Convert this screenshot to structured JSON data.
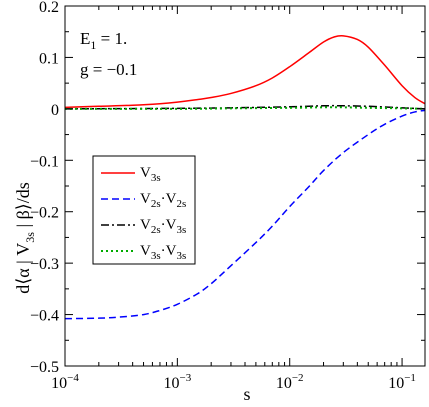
{
  "chart_data": {
    "type": "line",
    "xscale": "log",
    "xlim": [
      0.0001,
      0.16
    ],
    "ylim": [
      -0.5,
      0.2
    ],
    "xlabel": "s",
    "ylabel": "d⟨α|V3s|β⟩/ds",
    "ylabel_parts": {
      "pre": "d⟨α | V",
      "sub": "3s",
      "post": " | β⟩/ds"
    },
    "annotations": {
      "line1": "E1 = 1.",
      "line1_main": "E",
      "line1_sub": "1",
      "line1_rest": " = 1.",
      "line2": "g = −0.1"
    },
    "xticks": [
      {
        "value": 0.0001,
        "base": "10",
        "exp": "−4"
      },
      {
        "value": 0.001,
        "base": "10",
        "exp": "−3"
      },
      {
        "value": 0.01,
        "base": "10",
        "exp": "−2"
      },
      {
        "value": 0.1,
        "base": "10",
        "exp": "−1"
      }
    ],
    "yticks": [
      {
        "value": 0.2,
        "label": "0.2"
      },
      {
        "value": 0.1,
        "label": "0.1"
      },
      {
        "value": 0.0,
        "label": "0"
      },
      {
        "value": -0.1,
        "label": "−0.1"
      },
      {
        "value": -0.2,
        "label": "−0.2"
      },
      {
        "value": -0.3,
        "label": "−0.3"
      },
      {
        "value": -0.4,
        "label": "−0.4"
      },
      {
        "value": -0.5,
        "label": "−0.5"
      }
    ],
    "legend_position": "middle-left",
    "series": [
      {
        "name": "V3s",
        "legend_parts": [
          {
            "t": "V"
          },
          {
            "t": "3s",
            "sub": true
          }
        ],
        "color": "#ff0000",
        "dash": "solid",
        "x": [
          0.0001,
          0.0002,
          0.0004,
          0.0007,
          0.001,
          0.0015,
          0.002,
          0.003,
          0.005,
          0.007,
          0.01,
          0.015,
          0.02,
          0.025,
          0.03,
          0.04,
          0.05,
          0.07,
          0.1,
          0.13,
          0.16
        ],
        "y": [
          0.003,
          0.005,
          0.007,
          0.01,
          0.013,
          0.018,
          0.022,
          0.03,
          0.045,
          0.06,
          0.082,
          0.11,
          0.13,
          0.14,
          0.142,
          0.135,
          0.12,
          0.085,
          0.045,
          0.022,
          0.01
        ]
      },
      {
        "name": "V2s·V2s",
        "legend_parts": [
          {
            "t": "V"
          },
          {
            "t": "2s",
            "sub": true
          },
          {
            "t": "·V"
          },
          {
            "t": "2s",
            "sub": true
          }
        ],
        "color": "#0000ff",
        "dash": "dashed",
        "x": [
          0.0001,
          0.0002,
          0.0003,
          0.0005,
          0.0007,
          0.001,
          0.0015,
          0.002,
          0.003,
          0.005,
          0.007,
          0.01,
          0.015,
          0.02,
          0.03,
          0.05,
          0.07,
          0.1,
          0.13,
          0.16
        ],
        "y": [
          -0.408,
          -0.407,
          -0.405,
          -0.4,
          -0.392,
          -0.38,
          -0.36,
          -0.34,
          -0.305,
          -0.26,
          -0.228,
          -0.19,
          -0.15,
          -0.12,
          -0.085,
          -0.05,
          -0.03,
          -0.014,
          -0.006,
          -0.003
        ]
      },
      {
        "name": "V2s·V3s",
        "legend_parts": [
          {
            "t": "V"
          },
          {
            "t": "2s",
            "sub": true
          },
          {
            "t": "·V"
          },
          {
            "t": "3s",
            "sub": true
          }
        ],
        "color": "#000000",
        "dash": "dashdot",
        "x": [
          0.0001,
          0.001,
          0.003,
          0.01,
          0.02,
          0.03,
          0.05,
          0.1,
          0.16
        ],
        "y": [
          0.0,
          0.001,
          0.002,
          0.004,
          0.006,
          0.006,
          0.005,
          0.002,
          0.0
        ]
      },
      {
        "name": "V3s·V3s",
        "legend_parts": [
          {
            "t": "V"
          },
          {
            "t": "3s",
            "sub": true
          },
          {
            "t": "·V"
          },
          {
            "t": "3s",
            "sub": true
          }
        ],
        "color": "#00aa00",
        "dash": "dotted",
        "x": [
          0.0001,
          0.001,
          0.003,
          0.01,
          0.02,
          0.03,
          0.05,
          0.1,
          0.16
        ],
        "y": [
          0.0,
          0.0,
          0.001,
          0.002,
          0.003,
          0.003,
          0.002,
          0.001,
          0.0
        ]
      }
    ]
  }
}
